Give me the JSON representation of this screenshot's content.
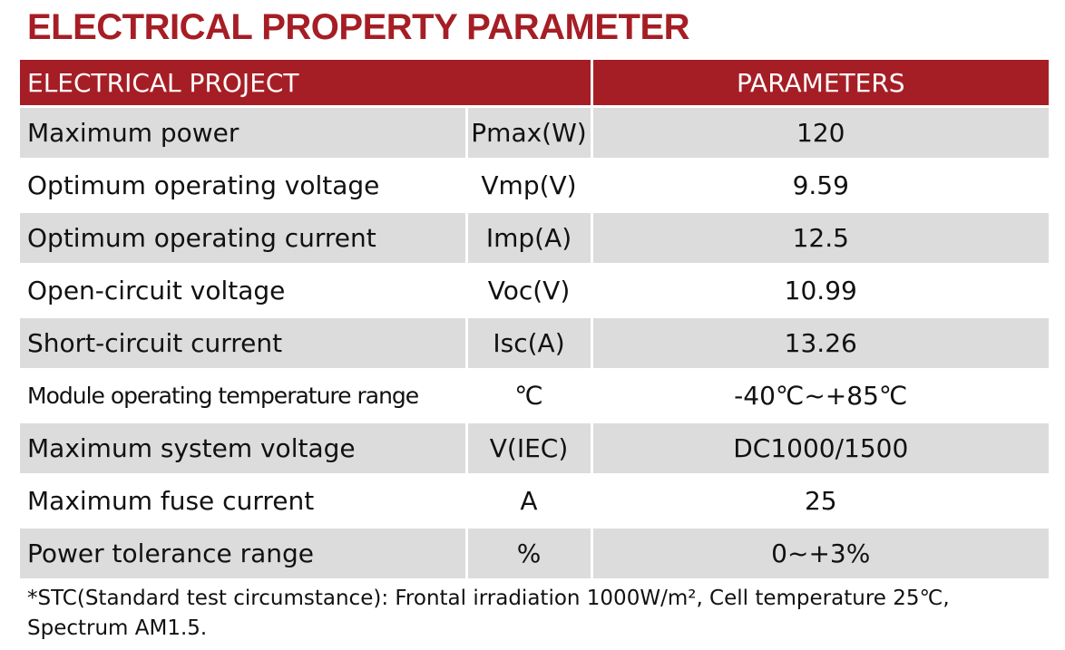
{
  "title": "ELECTRICAL PROPERTY PARAMETER",
  "table": {
    "header": [
      "ELECTRICAL PROJECT",
      "PARAMETERS"
    ],
    "rows": [
      [
        "Maximum power",
        "Pmax(W)",
        "120"
      ],
      [
        "Optimum operating voltage",
        "Vmp(V)",
        "9.59"
      ],
      [
        "Optimum operating current",
        "Imp(A)",
        "12.5"
      ],
      [
        "Open-circuit voltage",
        "Voc(V)",
        "10.99"
      ],
      [
        "Short-circuit current",
        "Isc(A)",
        "13.26"
      ],
      [
        "Module operating temperature range",
        "℃",
        "-40℃~+85℃"
      ],
      [
        "Maximum system voltage",
        "V(IEC)",
        "DC1000/1500"
      ],
      [
        "Maximum fuse current",
        "A",
        "25"
      ],
      [
        "Power tolerance range",
        "%",
        "0~+3%"
      ]
    ]
  },
  "footnote": "*STC(Standard test circumstance): Frontal irradiation 1000W/m², Cell temperature 25℃, Spectrum AM1.5."
}
